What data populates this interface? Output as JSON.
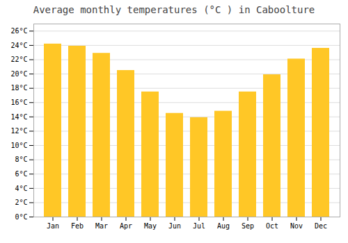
{
  "chart_data": {
    "type": "bar",
    "title": "Average monthly temperatures (°C ) in Caboolture",
    "categories": [
      "Jan",
      "Feb",
      "Mar",
      "Apr",
      "May",
      "Jun",
      "Jul",
      "Aug",
      "Sep",
      "Oct",
      "Nov",
      "Dec"
    ],
    "values": [
      24.2,
      23.9,
      22.9,
      20.5,
      17.5,
      14.5,
      13.9,
      14.8,
      17.5,
      19.9,
      22.1,
      23.6
    ],
    "color": "#FFC726",
    "ylim": [
      0,
      27
    ],
    "yticks": [
      {
        "value": 0,
        "label": "0°C"
      },
      {
        "value": 2,
        "label": "2°C"
      },
      {
        "value": 4,
        "label": "4°C"
      },
      {
        "value": 6,
        "label": "6°C"
      },
      {
        "value": 8,
        "label": "8°C"
      },
      {
        "value": 10,
        "label": "10°C"
      },
      {
        "value": 12,
        "label": "12°C"
      },
      {
        "value": 14,
        "label": "14°C"
      },
      {
        "value": 16,
        "label": "16°C"
      },
      {
        "value": 18,
        "label": "18°C"
      },
      {
        "value": 20,
        "label": "20°C"
      },
      {
        "value": 22,
        "label": "22°C"
      },
      {
        "value": 24,
        "label": "24°C"
      },
      {
        "value": 26,
        "label": "26°C"
      }
    ],
    "grid": true
  }
}
